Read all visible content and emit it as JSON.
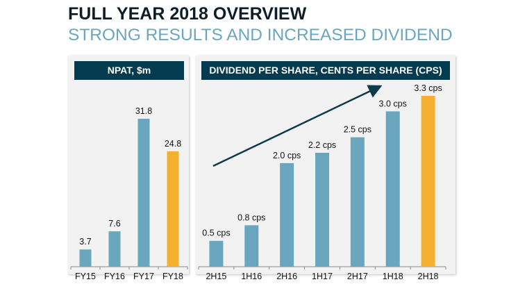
{
  "title": "FULL YEAR 2018 OVERVIEW",
  "subtitle": "STRONG RESULTS AND INCREASED DIVIDEND",
  "colors": {
    "bar": "#6aa6bd",
    "highlight": "#f5b031",
    "header": "#053b4e",
    "arrow": "#0d3a4a"
  },
  "chart_data": [
    {
      "type": "bar",
      "title": "NPAT, $m",
      "categories": [
        "FY15",
        "FY16",
        "FY17",
        "FY18"
      ],
      "values": [
        3.7,
        7.6,
        31.8,
        24.8
      ],
      "labels": [
        "3.7",
        "7.6",
        "31.8",
        "24.8"
      ],
      "highlight": "FY18",
      "ylim": [
        0,
        31.8
      ],
      "grid": false
    },
    {
      "type": "bar",
      "title": "DIVIDEND PER SHARE, CENTS PER SHARE (CPS)",
      "categories": [
        "2H15",
        "1H16",
        "2H16",
        "1H17",
        "2H17",
        "1H18",
        "2H18"
      ],
      "values": [
        0.5,
        0.8,
        2.0,
        2.2,
        2.5,
        3.0,
        3.3
      ],
      "labels": [
        "0.5 cps",
        "0.8 cps",
        "2.0 cps",
        "2.2 cps",
        "2.5 cps",
        "3.0 cps",
        "3.3 cps"
      ],
      "highlight": "2H18",
      "ylim": [
        0,
        3.3
      ],
      "grid": false,
      "annotation": "upward trend arrow"
    }
  ]
}
